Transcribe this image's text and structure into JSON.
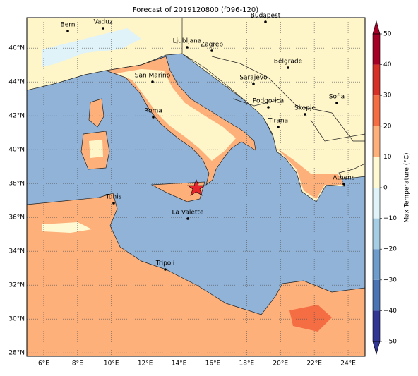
{
  "title": "Forecast of 2019120800 (f096-120)",
  "map": {
    "xlim": [
      5,
      25
    ],
    "ylim": [
      27.8,
      47.8
    ],
    "xticks": [
      {
        "value": 6,
        "label": "6°E"
      },
      {
        "value": 8,
        "label": "8°E"
      },
      {
        "value": 10,
        "label": "10°E"
      },
      {
        "value": 12,
        "label": "12°E"
      },
      {
        "value": 14,
        "label": "14°E"
      },
      {
        "value": 16,
        "label": "16°E"
      },
      {
        "value": 18,
        "label": "18°E"
      },
      {
        "value": 20,
        "label": "20°E"
      },
      {
        "value": 22,
        "label": "22°E"
      },
      {
        "value": 24,
        "label": "24°E"
      }
    ],
    "yticks": [
      {
        "value": 28,
        "label": "28°N"
      },
      {
        "value": 30,
        "label": "30°N"
      },
      {
        "value": 32,
        "label": "32°N"
      },
      {
        "value": 34,
        "label": "34°N"
      },
      {
        "value": 36,
        "label": "36°N"
      },
      {
        "value": 38,
        "label": "38°N"
      },
      {
        "value": 40,
        "label": "40°N"
      },
      {
        "value": 42,
        "label": "42°N"
      },
      {
        "value": 44,
        "label": "44°N"
      },
      {
        "value": 46,
        "label": "46°N"
      }
    ],
    "grid": true,
    "cities": [
      "Bern",
      "Vaduz",
      "Budapest",
      "Ljubljana",
      "Zagreb",
      "Belgrade",
      "San Marino",
      "Sarajevo",
      "Sofia",
      "Podgorica",
      "Skopje",
      "Roma",
      "Tirana",
      "Athens",
      "Tunis",
      "La Valette",
      "Tripoli"
    ]
  },
  "colorbar": {
    "label": "Max Temperature (°C)",
    "ticks": [
      {
        "value": -50,
        "label": "−50"
      },
      {
        "value": -40,
        "label": "−40"
      },
      {
        "value": -30,
        "label": "−30"
      },
      {
        "value": -20,
        "label": "−20"
      },
      {
        "value": -10,
        "label": "−10"
      },
      0,
      10,
      20,
      30,
      40,
      50
    ],
    "colors": [
      "#313695",
      "#4a74b4",
      "#6e9ccb",
      "#a5cde3",
      "#e0f3f8",
      "#fef9d2",
      "#fdb07a",
      "#f46d43",
      "#d73027",
      "#a50026"
    ]
  }
}
